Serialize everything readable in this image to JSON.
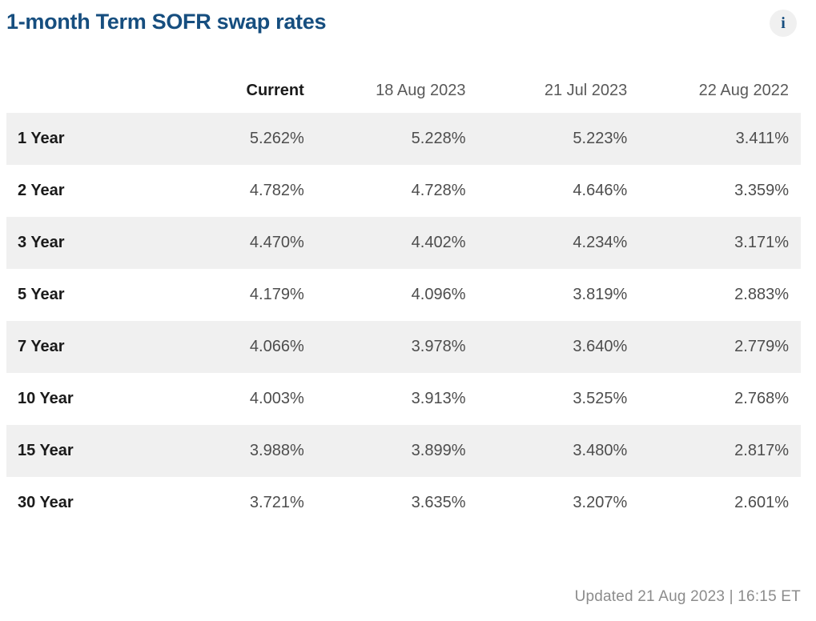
{
  "header": {
    "title": "1-month Term SOFR swap rates",
    "info_glyph": "i"
  },
  "table": {
    "columns": [
      "Current",
      "18 Aug 2023",
      "21 Jul 2023",
      "22 Aug 2022"
    ],
    "rows": [
      {
        "label": "1 Year",
        "values": [
          "5.262%",
          "5.228%",
          "5.223%",
          "3.411%"
        ]
      },
      {
        "label": "2 Year",
        "values": [
          "4.782%",
          "4.728%",
          "4.646%",
          "3.359%"
        ]
      },
      {
        "label": "3 Year",
        "values": [
          "4.470%",
          "4.402%",
          "4.234%",
          "3.171%"
        ]
      },
      {
        "label": "5 Year",
        "values": [
          "4.179%",
          "4.096%",
          "3.819%",
          "2.883%"
        ]
      },
      {
        "label": "7 Year",
        "values": [
          "4.066%",
          "3.978%",
          "3.640%",
          "2.779%"
        ]
      },
      {
        "label": "10 Year",
        "values": [
          "4.003%",
          "3.913%",
          "3.525%",
          "2.768%"
        ]
      },
      {
        "label": "15 Year",
        "values": [
          "3.988%",
          "3.899%",
          "3.480%",
          "2.817%"
        ]
      },
      {
        "label": "30 Year",
        "values": [
          "3.721%",
          "3.635%",
          "3.207%",
          "2.601%"
        ]
      }
    ]
  },
  "footer": {
    "updated": "Updated 21 Aug 2023 | 16:15 ET"
  },
  "colors": {
    "title_blue": "#164e7f",
    "stripe_gray": "#f0f0f0",
    "label_text": "#1a1a1a",
    "value_text": "#4d4d4d",
    "header_date_text": "#595959",
    "footer_text": "#8c8c8c",
    "info_circle_bg": "#f0f0f0"
  },
  "chart_data": {
    "type": "table",
    "title": "1-month Term SOFR swap rates",
    "categories": [
      "1 Year",
      "2 Year",
      "3 Year",
      "5 Year",
      "7 Year",
      "10 Year",
      "15 Year",
      "30 Year"
    ],
    "series": [
      {
        "name": "Current",
        "values": [
          5.262,
          4.782,
          4.47,
          4.179,
          4.066,
          4.003,
          3.988,
          3.721
        ]
      },
      {
        "name": "18 Aug 2023",
        "values": [
          5.228,
          4.728,
          4.402,
          4.096,
          3.978,
          3.913,
          3.899,
          3.635
        ]
      },
      {
        "name": "21 Jul 2023",
        "values": [
          5.223,
          4.646,
          4.234,
          3.819,
          3.64,
          3.525,
          3.48,
          3.207
        ]
      },
      {
        "name": "22 Aug 2022",
        "values": [
          3.411,
          3.359,
          3.171,
          2.883,
          2.779,
          2.768,
          2.817,
          2.601
        ]
      }
    ],
    "unit": "%",
    "note": "Updated 21 Aug 2023 | 16:15 ET"
  }
}
